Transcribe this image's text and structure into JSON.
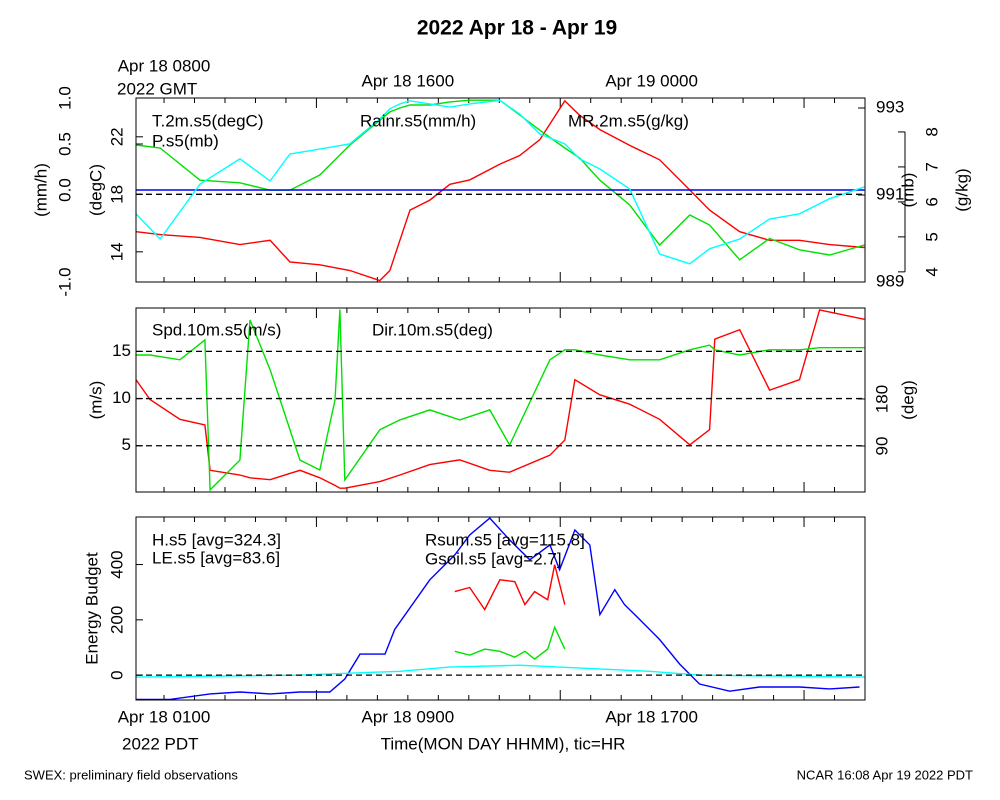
{
  "chart_data": {
    "type": "line",
    "title": "2022 Apr 18 - Apr 19",
    "xlabel": "Time(MON DAY HHMM), tic=HR",
    "top_zone": "2022 GMT",
    "bottom_zone": "2022 PDT",
    "footer_left": "SWEX: preliminary field observations",
    "footer_right": "NCAR 16:08 Apr 19 2022 PDT",
    "xlim": [
      -0.92,
      23
    ],
    "xticks": [
      0,
      1,
      2,
      3,
      4,
      5,
      6,
      7,
      8,
      9,
      10,
      11,
      12,
      13,
      14,
      15,
      16,
      17,
      18,
      19,
      20,
      21,
      22
    ],
    "top_labels": [
      {
        "value": 0,
        "label": "Apr 18 0800"
      },
      {
        "value": 8,
        "label": "Apr 18 1600"
      },
      {
        "value": 16,
        "label": "Apr 19 0000"
      }
    ],
    "bottom_labels": [
      {
        "value": 0,
        "label": "Apr 18 0100"
      },
      {
        "value": 8,
        "label": "Apr 18 0900"
      },
      {
        "value": 16,
        "label": "Apr 18 1700"
      }
    ],
    "panels": [
      {
        "axes": [
          {
            "label": "(mm/h)",
            "ylim": [
              -1,
              1
            ],
            "yticks": [
              {
                "value": -1,
                "label": "-1.0"
              },
              {
                "value": 0,
                "label": "0.0"
              },
              0.5,
              {
                "value": 1,
                "label": "1.0"
              }
            ]
          },
          {
            "label": "(degC)",
            "ylim": [
              11.9,
              24.7
            ],
            "yticks": [
              14,
              18,
              22
            ]
          },
          {
            "label": "(mb)",
            "ylim": [
              989,
              993.23
            ],
            "yticks": [
              989,
              991,
              993
            ]
          },
          {
            "label": "(g/kg)",
            "ylim": [
              3.71,
              8.97
            ],
            "yticks": [
              4,
              5,
              6,
              7,
              8
            ]
          }
        ],
        "hlines": [
          {
            "axis": 1,
            "value": 18
          }
        ],
        "x": [
          -0.92,
          -0.13,
          1.18,
          2.49,
          3.48,
          4.13,
          5.11,
          6.1,
          7.08,
          7.41,
          7.74,
          8.07,
          8.72,
          9.38,
          10.03,
          11.02,
          11.67,
          12.33,
          13.15,
          13.64,
          14.3,
          15.28,
          16.26,
          17.25,
          17.9,
          18.89,
          19.87,
          20.85,
          21.84,
          22.98
        ],
        "series": [
          {
            "name": "T.2m.s5(degC)",
            "color": "#ff0000",
            "axis": 1,
            "values": [
              15.4,
              15.2,
              15.0,
              14.5,
              14.8,
              13.3,
              13.1,
              12.7,
              12.0,
              12.7,
              14.8,
              16.9,
              17.6,
              18.7,
              19.0,
              20.1,
              20.7,
              21.8,
              24.5,
              23.5,
              22.5,
              21.4,
              20.4,
              18.3,
              16.9,
              15.4,
              14.8,
              14.8,
              14.5,
              14.3
            ]
          },
          {
            "name": "P.s5(mb)",
            "color": "#00e000",
            "axis": 2,
            "values": [
              992.15,
              992.08,
              991.34,
              991.28,
              991.11,
              991.11,
              991.46,
              992.15,
              992.72,
              992.91,
              993.0,
              993.07,
              993.07,
              993.14,
              993.18,
              993.18,
              992.84,
              992.49,
              992.08,
              991.85,
              991.34,
              990.77,
              989.85,
              990.54,
              990.31,
              989.51,
              990.0,
              989.74,
              989.62,
              989.85
            ]
          },
          {
            "name": "Rainr.s5(mm/h)",
            "color": "#0000ff",
            "axis": 0,
            "x": [
              -0.92,
              22.98
            ],
            "values": [
              0,
              0
            ]
          },
          {
            "name": "MR.2m.s5(g/kg)",
            "color": "#00ffff",
            "axis": 3,
            "values": [
              5.66,
              4.94,
              6.51,
              7.23,
              6.6,
              7.37,
              7.51,
              7.66,
              8.37,
              8.66,
              8.8,
              8.89,
              8.8,
              8.71,
              8.8,
              8.9,
              8.51,
              7.94,
              7.66,
              7.23,
              6.94,
              6.37,
              4.51,
              4.23,
              4.66,
              4.94,
              5.51,
              5.66,
              6.09,
              6.43
            ]
          }
        ]
      },
      {
        "axes": [
          {
            "label": "(m/s)",
            "ylim": [
              0.1,
              19.6
            ],
            "yticks": [
              5,
              10,
              15
            ]
          },
          {
            "label": "(deg)",
            "ylim": [
              2,
              354
            ],
            "yticks": [
              90,
              180
            ]
          }
        ],
        "hlines": [
          {
            "axis": 0,
            "value": 5
          },
          {
            "axis": 0,
            "value": 10
          },
          {
            "axis": 0,
            "value": 15
          }
        ],
        "x": [
          -0.92,
          -0.46,
          0.52,
          1.34,
          1.51,
          2.49,
          2.82,
          3.48,
          4.46,
          5.11,
          5.61,
          5.77,
          5.93,
          7.08,
          7.74,
          8.72,
          9.7,
          10.69,
          11.34,
          12.66,
          13.15,
          13.48,
          14.3,
          15.28,
          16.26,
          17.25,
          17.9,
          18.07,
          18.89,
          19.87,
          20.85,
          21.51,
          22.98
        ],
        "series": [
          {
            "name": "Spd.10m.s5(m/s)",
            "color": "#ff0000",
            "axis": 0,
            "values": [
              12,
              9.9,
              7.8,
              7.2,
              2.4,
              1.9,
              1.6,
              1.4,
              2.4,
              1.6,
              0.8,
              0.5,
              0.5,
              1.2,
              1.9,
              3.0,
              3.5,
              2.4,
              2.2,
              4.0,
              5.6,
              12,
              10.4,
              9.4,
              7.8,
              5.1,
              6.7,
              16.3,
              17.3,
              10.9,
              12,
              19.4,
              18.4
            ]
          },
          {
            "name": "Dir.10m.s5(deg)",
            "color": "#00e000",
            "axis": 1,
            "values": [
              264,
              264,
              255,
              293,
              6,
              63,
              331,
              236,
              63,
              44,
              178,
              351,
              25,
              121,
              140,
              159,
              140,
              159,
              92,
              255,
              274,
              274,
              264,
              255,
              255,
              274,
              283,
              274,
              264,
              274,
              274,
              278,
              278
            ]
          }
        ]
      },
      {
        "axes": [
          {
            "label": "Energy Budget",
            "ylim": [
              -90,
              572
            ],
            "yticks": [
              0,
              200,
              400
            ]
          }
        ],
        "hlines": [
          {
            "axis": 0,
            "value": 0
          }
        ],
        "series": [
          {
            "name": "H.s5 [avg=324.3]",
            "color": "#ff0000",
            "axis": 0,
            "x": [
              9.54,
              10.03,
              10.52,
              11.02,
              11.51,
              11.84,
              12.16,
              12.59,
              12.82,
              13.15
            ],
            "values": [
              302,
              317,
              237,
              345,
              338,
              255,
              302,
              273,
              399,
              255
            ]
          },
          {
            "name": "LE.s5 [avg=83.6]",
            "color": "#00e000",
            "axis": 0,
            "x": [
              9.54,
              10.03,
              10.52,
              11.02,
              11.51,
              11.84,
              12.16,
              12.59,
              12.82,
              13.15
            ],
            "values": [
              86,
              72,
              94,
              86,
              65,
              86,
              58,
              94,
              173,
              94
            ]
          },
          {
            "name": "Rsum.s5 [avg=115.8]",
            "color": "#0000ff",
            "axis": 0,
            "x": [
              -0.92,
              0.2,
              1.51,
              2.49,
              3.48,
              4.46,
              5.44,
              5.93,
              6.43,
              7.25,
              7.57,
              8.72,
              9.54,
              10.03,
              10.69,
              11.34,
              12.0,
              12.66,
              12.98,
              13.48,
              13.97,
              14.3,
              14.79,
              15.11,
              15.61,
              16.26,
              16.92,
              17.57,
              18.56,
              19.54,
              20.85,
              21.84,
              22.82
            ],
            "values": [
              -88,
              -88,
              -68,
              -61,
              -68,
              -61,
              -61,
              -14,
              76,
              76,
              165,
              345,
              435,
              507,
              568,
              489,
              417,
              471,
              381,
              525,
              471,
              219,
              309,
              255,
              201,
              129,
              40,
              -32,
              -58,
              -43,
              -43,
              -50,
              -43
            ]
          },
          {
            "name": "Gsoil.s5 [avg=2.7]",
            "color": "#00ffff",
            "axis": 0,
            "x": [
              -0.92,
              4.46,
              7.74,
              9.38,
              11.67,
              12.98,
              15.93,
              17.57,
              22.98
            ],
            "values": [
              -7,
              0,
              14,
              29,
              36,
              29,
              14,
              0,
              -7
            ]
          }
        ]
      }
    ]
  }
}
